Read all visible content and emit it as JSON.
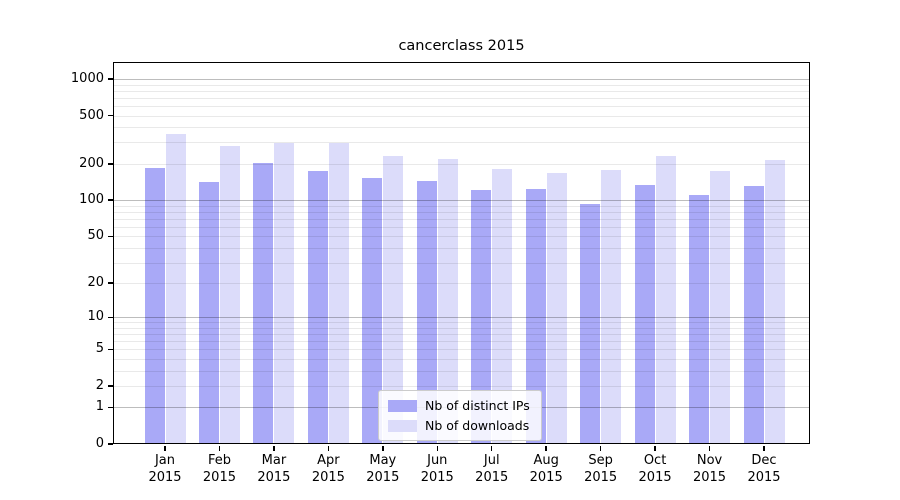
{
  "title": "cancerclass 2015",
  "chart_data": {
    "type": "bar",
    "title": "cancerclass 2015",
    "categories": [
      "Jan 2015",
      "Feb 2015",
      "Mar 2015",
      "Apr 2015",
      "May 2015",
      "Jun 2015",
      "Jul 2015",
      "Aug 2015",
      "Sep 2015",
      "Oct 2015",
      "Nov 2015",
      "Dec 2015"
    ],
    "x_axis": {
      "months": [
        "Jan",
        "Feb",
        "Mar",
        "Apr",
        "May",
        "Jun",
        "Jul",
        "Aug",
        "Sep",
        "Oct",
        "Nov",
        "Dec"
      ],
      "year": "2015"
    },
    "series": [
      {
        "name": "Nb of distinct IPs",
        "color": "#a9a9f7",
        "values": [
          183,
          141,
          203,
          176,
          153,
          145,
          121,
          124,
          93,
          133,
          111,
          130
        ]
      },
      {
        "name": "Nb of downloads",
        "color": "#dcdcfa",
        "values": [
          352,
          278,
          296,
          299,
          230,
          219,
          181,
          168,
          179,
          233,
          173,
          216
        ]
      }
    ],
    "y_axis": {
      "scale": "log10(value+1)",
      "ticks": [
        1000,
        500,
        200,
        100,
        50,
        20,
        10,
        5,
        2,
        1,
        0
      ],
      "major_gridlines": [
        1,
        10,
        100,
        1000
      ],
      "minor_gridlines": [
        2,
        3,
        4,
        5,
        6,
        7,
        8,
        9,
        20,
        30,
        40,
        50,
        60,
        70,
        80,
        90,
        200,
        300,
        400,
        500,
        600,
        700,
        800,
        900
      ],
      "range": [
        0,
        1200
      ]
    },
    "legend": {
      "position": "lower center"
    },
    "grid": true
  }
}
